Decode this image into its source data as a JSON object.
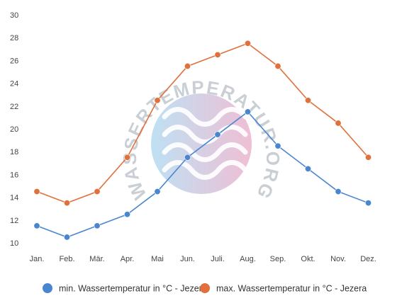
{
  "chart_data": {
    "type": "line",
    "categories": [
      "Jan.",
      "Feb.",
      "Mär.",
      "Apr.",
      "Mai",
      "Jun.",
      "Juli.",
      "Aug.",
      "Sep.",
      "Okt.",
      "Nov.",
      "Dez."
    ],
    "series": [
      {
        "name": "min. Wassertemperatur in °C - Jezera",
        "color": "#4a86d0",
        "values": [
          11.5,
          10.5,
          11.5,
          12.5,
          14.5,
          17.5,
          19.5,
          21.5,
          18.5,
          16.5,
          14.5,
          13.5
        ]
      },
      {
        "name": "max. Wassertemperatur in °C - Jezera",
        "color": "#e0703c",
        "values": [
          14.5,
          13.5,
          14.5,
          17.5,
          22.5,
          25.5,
          26.5,
          27.5,
          25.5,
          22.5,
          20.5,
          17.5
        ]
      }
    ],
    "yticks": [
      10,
      12,
      14,
      16,
      18,
      20,
      22,
      24,
      26,
      28,
      30
    ],
    "ylim": [
      10,
      30
    ],
    "grid": false,
    "legend": "bottom"
  },
  "watermark": {
    "text": "WASSERTEMPERATUR.ORG"
  }
}
